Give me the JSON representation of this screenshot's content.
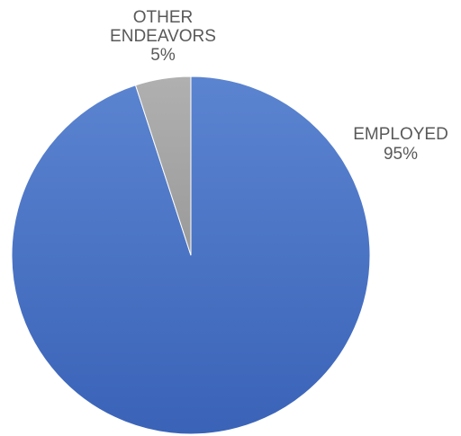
{
  "chart_data": {
    "type": "pie",
    "title": "",
    "slices": [
      {
        "label_lines": [
          "EMPLOYED"
        ],
        "percent_label": "95%",
        "value": 95,
        "color": "#4472C4"
      },
      {
        "label_lines": [
          "OTHER",
          "ENDEAVORS"
        ],
        "percent_label": "5%",
        "value": 5,
        "color": "#A5A5A5"
      }
    ],
    "start_angle": "12 o'clock",
    "direction": "clockwise",
    "legend": "none",
    "data_labels": "outside, category name and percentage"
  }
}
